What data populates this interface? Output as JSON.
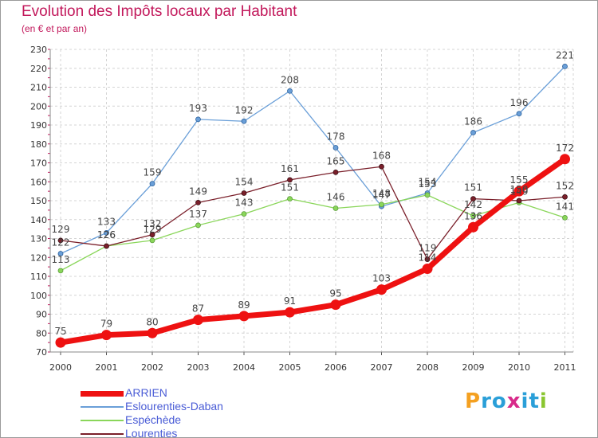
{
  "header": {
    "title": "Evolution des Impôts locaux par Habitant",
    "subtitle": "(en € et par an)"
  },
  "logo": {
    "text": "Proxiti",
    "letters": [
      "P",
      "r",
      "o",
      "x",
      "i",
      "t",
      "i"
    ],
    "colors": [
      "#f4a020",
      "#2a9fd8",
      "#2a9fd8",
      "#d82a8a",
      "#2a9fd8",
      "#2a9fd8",
      "#8ac630"
    ]
  },
  "chart_data": {
    "type": "line",
    "title": "Evolution des Impôts locaux par Habitant",
    "subtitle": "(en € et par an)",
    "xlabel": "",
    "ylabel": "",
    "x": [
      "2000",
      "2001",
      "2002",
      "2003",
      "2004",
      "2005",
      "2006",
      "2007",
      "2008",
      "2009",
      "2010",
      "2011"
    ],
    "ylim": [
      70,
      230
    ],
    "yticks": [
      70,
      80,
      90,
      100,
      110,
      120,
      130,
      140,
      150,
      160,
      170,
      180,
      190,
      200,
      210,
      220,
      230
    ],
    "grid": true,
    "legend_position": "bottom-left",
    "series": [
      {
        "name": "ARRIEN",
        "color": "#ee1111",
        "values": [
          75,
          79,
          80,
          87,
          89,
          91,
          95,
          103,
          114,
          136,
          155,
          172
        ],
        "labels": [
          "75",
          "79",
          "80",
          "87",
          "89",
          "91",
          "95",
          "103",
          "114",
          "136",
          "155",
          "172"
        ]
      },
      {
        "name": "Eslourenties-Daban",
        "color": "#6a9fd8",
        "values": [
          122,
          133,
          159,
          193,
          192,
          208,
          178,
          147,
          154,
          186,
          196,
          221
        ],
        "labels": [
          "122",
          "133",
          "159",
          "193",
          "192",
          "208",
          "178",
          "147",
          "154",
          "186",
          "196",
          "221"
        ]
      },
      {
        "name": "Espéchède",
        "color": "#8ad65a",
        "values": [
          113,
          126,
          129,
          137,
          143,
          151,
          146,
          148,
          153,
          142,
          149,
          141
        ],
        "labels": [
          "113",
          "126",
          "129",
          "137",
          "143",
          "151",
          "146",
          "148",
          "153",
          "142",
          "149",
          "141"
        ]
      },
      {
        "name": "Lourenties",
        "color": "#7a1f2a",
        "values": [
          129,
          126,
          132,
          149,
          154,
          161,
          165,
          168,
          119,
          151,
          150,
          152
        ],
        "labels": [
          "129",
          "126",
          "132",
          "149",
          "154",
          "161",
          "165",
          "168",
          "119",
          "151",
          "150",
          "152"
        ]
      }
    ]
  }
}
